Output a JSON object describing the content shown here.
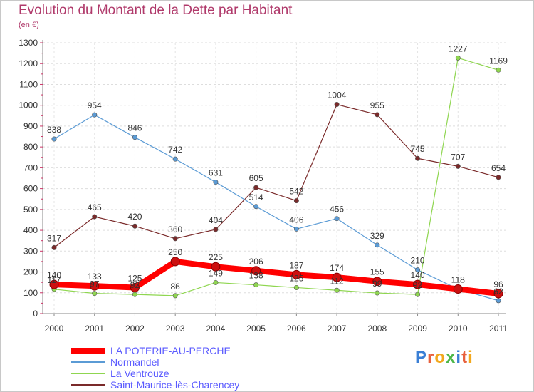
{
  "title": "Evolution du Montant de la Dette par Habitant",
  "subtitle": "(en €)",
  "logo": "Proxiti",
  "chart_data": {
    "type": "line",
    "x": [
      "2000",
      "2001",
      "2002",
      "2003",
      "2004",
      "2005",
      "2006",
      "2007",
      "2008",
      "2009",
      "2010",
      "2011"
    ],
    "ylim": [
      0,
      1300
    ],
    "yticks": [
      0,
      100,
      200,
      300,
      400,
      500,
      600,
      700,
      800,
      900,
      1000,
      1100,
      1200,
      1300
    ],
    "grid": true,
    "legend_position": "bottom-left",
    "series": [
      {
        "name": "LA POTERIE-AU-PERCHE",
        "color": "#ff0000",
        "values": [
          140,
          133,
          125,
          250,
          225,
          206,
          187,
          174,
          155,
          140,
          118,
          96
        ]
      },
      {
        "name": "Normandel",
        "color": "#5b9bd5",
        "values": [
          838,
          954,
          846,
          742,
          631,
          514,
          406,
          456,
          329,
          210,
          118,
          62
        ]
      },
      {
        "name": "La Ventrouze",
        "color": "#8fd650",
        "values": [
          117,
          97,
          92,
          86,
          149,
          138,
          125,
          112,
          99,
          92,
          1227,
          1169
        ]
      },
      {
        "name": "Saint-Maurice-lès-Charencey",
        "color": "#7a2a2a",
        "values": [
          317,
          465,
          420,
          360,
          404,
          605,
          542,
          1004,
          955,
          745,
          707,
          654
        ]
      }
    ]
  }
}
